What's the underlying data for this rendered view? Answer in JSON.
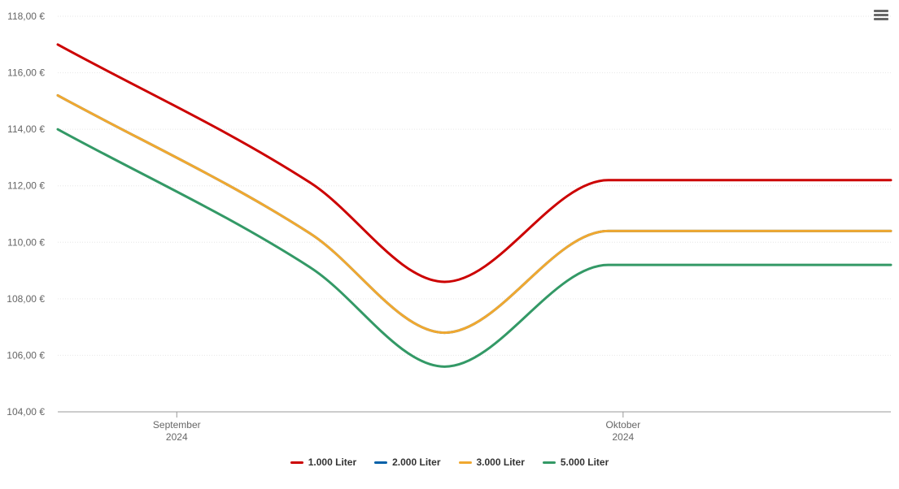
{
  "menu": {
    "icon": "hamburger-menu-icon"
  },
  "chart_data": {
    "type": "line",
    "y_unit": "€",
    "ylim": [
      104,
      118
    ],
    "y_ticks": [
      "104,00 €",
      "106,00 €",
      "108,00 €",
      "110,00 €",
      "112,00 €",
      "114,00 €",
      "116,00 €",
      "118,00 €"
    ],
    "x_ticks": [
      {
        "line1": "September",
        "line2": "2024"
      },
      {
        "line1": "Oktober",
        "line2": "2024"
      }
    ],
    "x": [
      "2024-08-24",
      "2024-09-10",
      "2024-09-19",
      "2024-09-30",
      "2024-10-02",
      "2024-10-19"
    ],
    "grid": true,
    "legend_position": "bottom-center",
    "series": [
      {
        "name": "1.000 Liter",
        "color": "#cc0000",
        "values": [
          117.0,
          112.1,
          108.6,
          112.2,
          112.2,
          112.2
        ]
      },
      {
        "name": "2.000 Liter",
        "color": "#0060a8",
        "values": [
          115.2,
          110.3,
          106.8,
          110.4,
          110.4,
          110.4
        ]
      },
      {
        "name": "3.000 Liter",
        "color": "#f0a830",
        "values": [
          115.2,
          110.3,
          106.8,
          110.4,
          110.4,
          110.4
        ]
      },
      {
        "name": "5.000 Liter",
        "color": "#339966",
        "values": [
          114.0,
          109.1,
          105.6,
          109.2,
          109.2,
          109.2
        ]
      }
    ]
  }
}
